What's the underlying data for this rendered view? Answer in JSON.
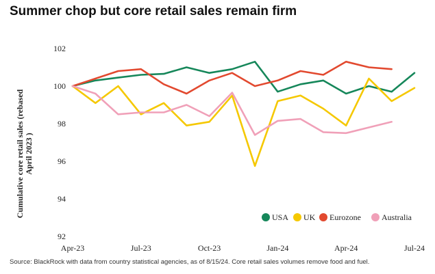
{
  "title": "Summer chop but core retail sales remain firm",
  "source": "Source: BlackRock with data from country statistical agencies, as of 8/15/24. Core retail sales volumes remove food and fuel.",
  "chart_data": {
    "type": "line",
    "ylabel_line1": "Cumulative core retail sales (rebased",
    "ylabel_line2": "April 2023 )",
    "ylim": [
      92,
      102
    ],
    "y_ticks": [
      {
        "value": 92,
        "label": "92"
      },
      {
        "value": 94,
        "label": "94"
      },
      {
        "value": 96,
        "label": "96"
      },
      {
        "value": 98,
        "label": "98"
      },
      {
        "value": 100,
        "label": "100"
      },
      {
        "value": 102,
        "label": "102"
      }
    ],
    "x": [
      "2023-04",
      "2023-05",
      "2023-06",
      "2023-07",
      "2023-08",
      "2023-09",
      "2023-10",
      "2023-11",
      "2023-12",
      "2024-01",
      "2024-02",
      "2024-03",
      "2024-04",
      "2024-05",
      "2024-06",
      "2024-07"
    ],
    "x_ticks": [
      {
        "index": 0,
        "label": "Apr-23"
      },
      {
        "index": 3,
        "label": "Jul-23"
      },
      {
        "index": 6,
        "label": "Oct-23"
      },
      {
        "index": 9,
        "label": "Jan-24"
      },
      {
        "index": 12,
        "label": "Apr-24"
      },
      {
        "index": 15,
        "label": "Jul-24"
      }
    ],
    "grid": false,
    "legend_position": "bottom-right",
    "series": [
      {
        "name": "USA",
        "color": "#16875a",
        "values": [
          100,
          100.3,
          100.45,
          100.6,
          100.65,
          101.0,
          100.7,
          100.9,
          101.3,
          99.7,
          100.1,
          100.3,
          99.6,
          100.0,
          99.7,
          100.7
        ]
      },
      {
        "name": "UK",
        "color": "#f5c800",
        "values": [
          100,
          99.1,
          100.0,
          98.5,
          99.1,
          97.9,
          98.1,
          99.5,
          95.75,
          99.2,
          99.5,
          98.8,
          97.9,
          100.4,
          99.2,
          99.9
        ]
      },
      {
        "name": "Eurozone",
        "color": "#e2492f",
        "values": [
          100,
          100.4,
          100.8,
          100.9,
          100.1,
          99.6,
          100.3,
          100.7,
          100.0,
          100.3,
          100.8,
          100.6,
          101.3,
          101.0,
          100.9,
          null
        ]
      },
      {
        "name": "Australia",
        "color": "#f0a0b8",
        "values": [
          100,
          99.6,
          98.5,
          98.6,
          98.6,
          99.0,
          98.4,
          99.65,
          97.4,
          98.15,
          98.25,
          97.55,
          97.5,
          97.8,
          98.1,
          null
        ]
      }
    ]
  }
}
